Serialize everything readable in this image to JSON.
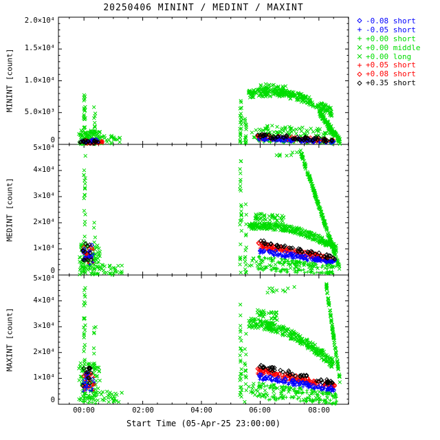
{
  "chart_data": {
    "type": "scatter",
    "title": "20250406 MININT / MEDINT / MAXINT",
    "xlabel": "Start Time (05-Apr-25 23:00:00)",
    "x_axis": {
      "unit": "hours since 23:00",
      "range": [
        0.13,
        10.01
      ],
      "ticks": [
        {
          "t": 1,
          "label": "00:00"
        },
        {
          "t": 3,
          "label": "02:00"
        },
        {
          "t": 5,
          "label": "04:00"
        },
        {
          "t": 7,
          "label": "06:00"
        },
        {
          "t": 9,
          "label": "08:00"
        }
      ]
    },
    "series": [
      {
        "label": "-0.08 short",
        "color": "#0000ff",
        "marker": "diamond"
      },
      {
        "label": "-0.05 short",
        "color": "#0000ff",
        "marker": "plus"
      },
      {
        "label": "+0.00 short",
        "color": "#00dd00",
        "marker": "plus"
      },
      {
        "label": "+0.00 middle",
        "color": "#00dd00",
        "marker": "x"
      },
      {
        "label": "+0.00 long",
        "color": "#00dd00",
        "marker": "x"
      },
      {
        "label": "+0.05 short",
        "color": "#ff0000",
        "marker": "plus"
      },
      {
        "label": "+0.08 short",
        "color": "#ff0000",
        "marker": "diamond"
      },
      {
        "label": "+0.35 short",
        "color": "#000000",
        "marker": "diamond"
      }
    ],
    "panels": [
      {
        "ylabel": "MININT [count]",
        "ymax": 20000,
        "yticks": [
          {
            "v": 0,
            "label": "0"
          },
          {
            "v": 5000,
            "label": "5.0×10³"
          },
          {
            "v": 10000,
            "label": "1.0×10⁴"
          },
          {
            "v": 15000,
            "label": "1.5×10⁴"
          },
          {
            "v": 20000,
            "label": "2.0×10⁴"
          }
        ]
      },
      {
        "ylabel": "MEDINT [count]",
        "ymax": 50000,
        "yticks": [
          {
            "v": 0,
            "label": "0"
          },
          {
            "v": 10000,
            "label": "1×10⁴"
          },
          {
            "v": 20000,
            "label": "2×10⁴"
          },
          {
            "v": 30000,
            "label": "3×10⁴"
          },
          {
            "v": 40000,
            "label": "4×10⁴"
          },
          {
            "v": 50000,
            "label": "5×10⁴"
          }
        ]
      },
      {
        "ylabel": "MAXINT [count]",
        "ymax": 50000,
        "yticks": [
          {
            "v": 0,
            "label": "0"
          },
          {
            "v": 10000,
            "label": "1×10⁴"
          },
          {
            "v": 20000,
            "label": "2×10⁴"
          },
          {
            "v": 30000,
            "label": "3×10⁴"
          },
          {
            "v": 40000,
            "label": "4×10⁴"
          },
          {
            "v": 50000,
            "label": "5×10⁴"
          }
        ]
      }
    ],
    "clusters": [
      {
        "p": 0,
        "s": 3,
        "n": 25,
        "t": [
          0.99,
          1.05
        ],
        "y": [
          4400,
          4400
        ],
        "jy": 4400
      },
      {
        "p": 0,
        "s": 3,
        "n": 90,
        "t": [
          0.82,
          1.55
        ],
        "y": [
          1100,
          1100
        ],
        "jy": 1100
      },
      {
        "p": 0,
        "s": 3,
        "n": 12,
        "t": [
          1.33,
          1.4
        ],
        "y": [
          3100,
          3100
        ],
        "jy": 3100
      },
      {
        "p": 0,
        "s": 3,
        "n": 25,
        "t": [
          1.55,
          2.25
        ],
        "y": [
          700,
          700
        ],
        "jy": 700
      },
      {
        "p": 0,
        "s": 2,
        "n": 30,
        "t": [
          0.85,
          1.6
        ],
        "y": [
          400,
          400
        ],
        "jy": 380
      },
      {
        "p": 0,
        "s": 5,
        "n": 25,
        "t": [
          0.85,
          1.65
        ],
        "y": [
          350,
          350
        ],
        "jy": 300
      },
      {
        "p": 0,
        "s": 6,
        "n": 15,
        "t": [
          0.9,
          1.5
        ],
        "y": [
          500,
          500
        ],
        "jy": 350
      },
      {
        "p": 0,
        "s": 7,
        "n": 18,
        "t": [
          0.85,
          1.6
        ],
        "y": [
          400,
          400
        ],
        "jy": 300
      },
      {
        "p": 0,
        "s": 1,
        "n": 12,
        "t": [
          0.9,
          1.5
        ],
        "y": [
          400,
          400
        ],
        "jy": 250
      },
      {
        "p": 0,
        "s": 0,
        "n": 8,
        "t": [
          0.95,
          1.45
        ],
        "y": [
          500,
          500
        ],
        "jy": 300
      },
      {
        "p": 0,
        "s": 3,
        "n": 22,
        "t": [
          6.31,
          6.37
        ],
        "y": [
          3600,
          3600
        ],
        "jy": 3600
      },
      {
        "p": 0,
        "s": 3,
        "n": 14,
        "t": [
          6.47,
          6.53
        ],
        "y": [
          2600,
          2600
        ],
        "jy": 2600
      },
      {
        "p": 0,
        "s": 3,
        "n": 240,
        "t": [
          6.6,
          9.45
        ],
        "y": [
          7800,
          5000
        ],
        "jy": 650,
        "b": 1400
      },
      {
        "p": 0,
        "s": 3,
        "n": 40,
        "t": [
          6.9,
          7.9
        ],
        "y": [
          8900,
          8500
        ],
        "jy": 700
      },
      {
        "p": 0,
        "s": 3,
        "n": 110,
        "t": [
          6.6,
          9.5
        ],
        "y": [
          2200,
          1200
        ],
        "jy": 1100
      },
      {
        "p": 0,
        "s": 4,
        "n": 120,
        "t": [
          9.0,
          9.72
        ],
        "y": [
          5200,
          400
        ],
        "jy": 450
      },
      {
        "p": 0,
        "s": 7,
        "n": 60,
        "t": [
          6.85,
          9.5
        ],
        "y": [
          1400,
          650
        ],
        "jy": 350
      },
      {
        "p": 0,
        "s": 6,
        "n": 55,
        "t": [
          6.9,
          9.5
        ],
        "y": [
          1200,
          550
        ],
        "jy": 300
      },
      {
        "p": 0,
        "s": 5,
        "n": 55,
        "t": [
          6.9,
          9.5
        ],
        "y": [
          1000,
          480
        ],
        "jy": 280
      },
      {
        "p": 0,
        "s": 1,
        "n": 50,
        "t": [
          6.9,
          9.5
        ],
        "y": [
          850,
          420
        ],
        "jy": 250
      },
      {
        "p": 0,
        "s": 0,
        "n": 45,
        "t": [
          6.95,
          9.5
        ],
        "y": [
          950,
          470
        ],
        "jy": 260
      },
      {
        "p": 0,
        "s": 2,
        "n": 55,
        "t": [
          6.9,
          9.55
        ],
        "y": [
          600,
          300
        ],
        "jy": 280
      },
      {
        "p": 1,
        "s": 3,
        "n": 30,
        "t": [
          0.99,
          1.05
        ],
        "y": [
          23000,
          23000
        ],
        "jy": 23000
      },
      {
        "p": 1,
        "s": 3,
        "n": 80,
        "t": [
          0.82,
          1.55
        ],
        "y": [
          6000,
          6000
        ],
        "jy": 6000
      },
      {
        "p": 1,
        "s": 3,
        "n": 12,
        "t": [
          1.33,
          1.4
        ],
        "y": [
          11000,
          11000
        ],
        "jy": 11000
      },
      {
        "p": 1,
        "s": 3,
        "n": 25,
        "t": [
          1.55,
          2.3
        ],
        "y": [
          2000,
          2000
        ],
        "jy": 2000
      },
      {
        "p": 1,
        "s": 7,
        "n": 12,
        "t": [
          0.95,
          1.3
        ],
        "y": [
          9000,
          9000
        ],
        "jy": 3500
      },
      {
        "p": 1,
        "s": 6,
        "n": 12,
        "t": [
          0.95,
          1.3
        ],
        "y": [
          8000,
          8000
        ],
        "jy": 3000
      },
      {
        "p": 1,
        "s": 5,
        "n": 12,
        "t": [
          0.95,
          1.35
        ],
        "y": [
          7000,
          7000
        ],
        "jy": 2800
      },
      {
        "p": 1,
        "s": 0,
        "n": 10,
        "t": [
          0.95,
          1.3
        ],
        "y": [
          8500,
          8500
        ],
        "jy": 3000
      },
      {
        "p": 1,
        "s": 1,
        "n": 10,
        "t": [
          0.95,
          1.35
        ],
        "y": [
          6500,
          6500
        ],
        "jy": 2500
      },
      {
        "p": 1,
        "s": 2,
        "n": 20,
        "t": [
          0.9,
          1.5
        ],
        "y": [
          2500,
          2500
        ],
        "jy": 2300
      },
      {
        "p": 1,
        "s": 3,
        "n": 26,
        "t": [
          6.31,
          6.37
        ],
        "y": [
          22000,
          22000
        ],
        "jy": 22000
      },
      {
        "p": 1,
        "s": 3,
        "n": 14,
        "t": [
          6.47,
          6.53
        ],
        "y": [
          14000,
          14000
        ],
        "jy": 14000
      },
      {
        "p": 1,
        "s": 3,
        "n": 280,
        "t": [
          6.6,
          9.6
        ],
        "y": [
          18500,
          10200
        ],
        "jy": 1300,
        "b": 3000
      },
      {
        "p": 1,
        "s": 3,
        "n": 40,
        "t": [
          6.8,
          7.8
        ],
        "y": [
          22500,
          21500
        ],
        "jy": 1200
      },
      {
        "p": 1,
        "s": 4,
        "n": 200,
        "t": [
          8.35,
          9.7
        ],
        "y": [
          48000,
          3000
        ],
        "jy": 900
      },
      {
        "p": 1,
        "s": 4,
        "n": 8,
        "t": [
          7.3,
          8.3
        ],
        "y": [
          45000,
          47000
        ],
        "jy": 1500
      },
      {
        "p": 1,
        "s": 7,
        "n": 45,
        "t": [
          6.9,
          9.55
        ],
        "y": [
          13000,
          6500
        ],
        "jy": 700
      },
      {
        "p": 1,
        "s": 6,
        "n": 70,
        "t": [
          6.9,
          9.55
        ],
        "y": [
          12000,
          6000
        ],
        "jy": 700
      },
      {
        "p": 1,
        "s": 5,
        "n": 70,
        "t": [
          6.9,
          9.55
        ],
        "y": [
          10800,
          5400
        ],
        "jy": 650
      },
      {
        "p": 1,
        "s": 0,
        "n": 60,
        "t": [
          6.95,
          9.55
        ],
        "y": [
          9800,
          4900
        ],
        "jy": 600
      },
      {
        "p": 1,
        "s": 1,
        "n": 60,
        "t": [
          6.95,
          9.55
        ],
        "y": [
          8800,
          4400
        ],
        "jy": 600
      },
      {
        "p": 1,
        "s": 2,
        "n": 70,
        "t": [
          6.9,
          9.6
        ],
        "y": [
          6500,
          2800
        ],
        "jy": 900
      },
      {
        "p": 1,
        "s": 2,
        "n": 60,
        "t": [
          6.9,
          9.6
        ],
        "y": [
          2300,
          700
        ],
        "jy": 700
      },
      {
        "p": 1,
        "s": 3,
        "n": 60,
        "t": [
          6.6,
          9.6
        ],
        "y": [
          5000,
          2500
        ],
        "jy": 2000
      },
      {
        "p": 2,
        "s": 3,
        "n": 30,
        "t": [
          0.99,
          1.05
        ],
        "y": [
          23500,
          23500
        ],
        "jy": 23500
      },
      {
        "p": 2,
        "s": 3,
        "n": 85,
        "t": [
          0.82,
          1.55
        ],
        "y": [
          8000,
          8000
        ],
        "jy": 8000
      },
      {
        "p": 2,
        "s": 3,
        "n": 12,
        "t": [
          1.33,
          1.4
        ],
        "y": [
          15000,
          15000
        ],
        "jy": 15000
      },
      {
        "p": 2,
        "s": 3,
        "n": 25,
        "t": [
          1.55,
          2.3
        ],
        "y": [
          2500,
          2500
        ],
        "jy": 2500
      },
      {
        "p": 2,
        "s": 7,
        "n": 12,
        "t": [
          0.95,
          1.3
        ],
        "y": [
          11000,
          11000
        ],
        "jy": 4000
      },
      {
        "p": 2,
        "s": 6,
        "n": 12,
        "t": [
          0.95,
          1.35
        ],
        "y": [
          9500,
          9500
        ],
        "jy": 3500
      },
      {
        "p": 2,
        "s": 5,
        "n": 12,
        "t": [
          0.95,
          1.35
        ],
        "y": [
          8500,
          8500
        ],
        "jy": 3200
      },
      {
        "p": 2,
        "s": 0,
        "n": 10,
        "t": [
          0.95,
          1.3
        ],
        "y": [
          10000,
          10000
        ],
        "jy": 3500
      },
      {
        "p": 2,
        "s": 1,
        "n": 10,
        "t": [
          0.95,
          1.35
        ],
        "y": [
          8000,
          8000
        ],
        "jy": 3000
      },
      {
        "p": 2,
        "s": 2,
        "n": 20,
        "t": [
          0.9,
          1.5
        ],
        "y": [
          3000,
          3000
        ],
        "jy": 2800
      },
      {
        "p": 2,
        "s": 3,
        "n": 26,
        "t": [
          6.31,
          6.37
        ],
        "y": [
          22000,
          22000
        ],
        "jy": 22000
      },
      {
        "p": 2,
        "s": 3,
        "n": 14,
        "t": [
          6.47,
          6.53
        ],
        "y": [
          15000,
          15000
        ],
        "jy": 15000
      },
      {
        "p": 2,
        "s": 3,
        "n": 280,
        "t": [
          6.6,
          9.5
        ],
        "y": [
          31500,
          15500
        ],
        "jy": 1800,
        "b": 3500
      },
      {
        "p": 2,
        "s": 3,
        "n": 30,
        "t": [
          6.8,
          7.6
        ],
        "y": [
          35500,
          34000
        ],
        "jy": 1500
      },
      {
        "p": 2,
        "s": 4,
        "n": 90,
        "t": [
          9.25,
          9.72
        ],
        "y": [
          46000,
          9000
        ],
        "jy": 1200
      },
      {
        "p": 2,
        "s": 4,
        "n": 10,
        "t": [
          7.2,
          8.3
        ],
        "y": [
          44000,
          45500
        ],
        "jy": 1500
      },
      {
        "p": 2,
        "s": 7,
        "n": 45,
        "t": [
          6.9,
          9.55
        ],
        "y": [
          15000,
          8000
        ],
        "jy": 800
      },
      {
        "p": 2,
        "s": 6,
        "n": 70,
        "t": [
          6.9,
          9.55
        ],
        "y": [
          13500,
          7200
        ],
        "jy": 800
      },
      {
        "p": 2,
        "s": 5,
        "n": 70,
        "t": [
          6.9,
          9.55
        ],
        "y": [
          12200,
          6500
        ],
        "jy": 750
      },
      {
        "p": 2,
        "s": 0,
        "n": 60,
        "t": [
          6.95,
          9.55
        ],
        "y": [
          11000,
          5800
        ],
        "jy": 700
      },
      {
        "p": 2,
        "s": 1,
        "n": 60,
        "t": [
          6.95,
          9.55
        ],
        "y": [
          10000,
          5200
        ],
        "jy": 650
      },
      {
        "p": 2,
        "s": 2,
        "n": 70,
        "t": [
          6.9,
          9.6
        ],
        "y": [
          7500,
          3200
        ],
        "jy": 1000
      },
      {
        "p": 2,
        "s": 2,
        "n": 60,
        "t": [
          6.9,
          9.6
        ],
        "y": [
          2800,
          800
        ],
        "jy": 800
      },
      {
        "p": 2,
        "s": 3,
        "n": 70,
        "t": [
          6.6,
          9.6
        ],
        "y": [
          6000,
          3000
        ],
        "jy": 2500
      }
    ]
  }
}
